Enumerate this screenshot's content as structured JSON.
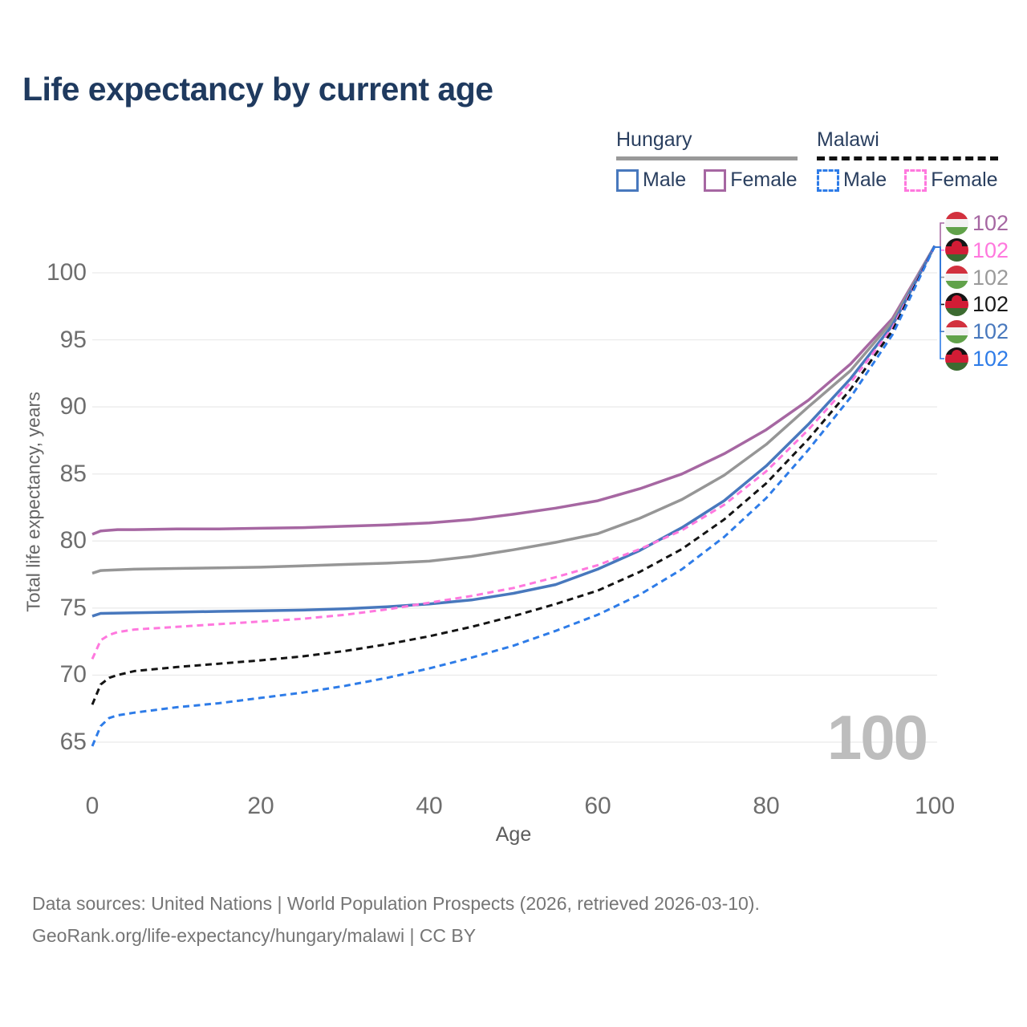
{
  "title": "Life expectancy by current age",
  "legend": {
    "groups": [
      {
        "country": "Hungary",
        "line_style": "solid",
        "items": [
          {
            "label": "Male",
            "color": "#4878bd",
            "dash": "solid"
          },
          {
            "label": "Female",
            "color": "#a667a2",
            "dash": "solid"
          }
        ]
      },
      {
        "country": "Malawi",
        "line_style": "dashed",
        "items": [
          {
            "label": "Male",
            "color": "#2e7ce8",
            "dash": "dashed"
          },
          {
            "label": "Female",
            "color": "#ff78de",
            "dash": "dashed"
          }
        ]
      }
    ]
  },
  "watermark": "100",
  "footer": {
    "line1": "Data sources: United Nations | World Population Prospects (2026, retrieved 2026-03-10).",
    "line2": "GeoRank.org/life-expectancy/hungary/malawi | CC BY"
  },
  "chart_data": {
    "type": "line",
    "title": "Life expectancy by current age",
    "xlabel": "Age",
    "ylabel": "Total life expectancy, years",
    "xlim": [
      0,
      100
    ],
    "ylim": [
      65,
      102
    ],
    "xticks": [
      "0",
      "20",
      "40",
      "60",
      "80",
      "100"
    ],
    "yticks": [
      "65",
      "70",
      "75",
      "80",
      "85",
      "90",
      "95",
      "100"
    ],
    "grid": "horizontal",
    "grid_color": "#e9e9e9",
    "legend_position": "top-right",
    "series": [
      {
        "id": "hungary-female",
        "name": "Hungary Female",
        "color": "#a667a2",
        "dash": "solid",
        "points": [
          [
            0,
            80.5
          ],
          [
            1,
            80.75
          ],
          [
            3,
            80.85
          ],
          [
            5,
            80.85
          ],
          [
            10,
            80.9
          ],
          [
            15,
            80.9
          ],
          [
            20,
            80.95
          ],
          [
            25,
            81.0
          ],
          [
            30,
            81.1
          ],
          [
            35,
            81.2
          ],
          [
            40,
            81.35
          ],
          [
            45,
            81.6
          ],
          [
            50,
            82.0
          ],
          [
            55,
            82.45
          ],
          [
            60,
            83.0
          ],
          [
            65,
            83.9
          ],
          [
            70,
            85.0
          ],
          [
            75,
            86.5
          ],
          [
            80,
            88.3
          ],
          [
            85,
            90.5
          ],
          [
            90,
            93.2
          ],
          [
            95,
            96.6
          ],
          [
            100,
            102
          ]
        ]
      },
      {
        "id": "hungary-total",
        "name": "Hungary Both sexes",
        "color": "#969696",
        "dash": "solid",
        "points": [
          [
            0,
            77.6
          ],
          [
            1,
            77.8
          ],
          [
            5,
            77.9
          ],
          [
            10,
            77.95
          ],
          [
            15,
            78.0
          ],
          [
            20,
            78.05
          ],
          [
            25,
            78.15
          ],
          [
            30,
            78.25
          ],
          [
            35,
            78.35
          ],
          [
            40,
            78.5
          ],
          [
            45,
            78.85
          ],
          [
            50,
            79.35
          ],
          [
            55,
            79.9
          ],
          [
            60,
            80.55
          ],
          [
            65,
            81.7
          ],
          [
            70,
            83.1
          ],
          [
            75,
            84.9
          ],
          [
            80,
            87.2
          ],
          [
            85,
            90.0
          ],
          [
            90,
            92.7
          ],
          [
            95,
            96.4
          ],
          [
            100,
            102
          ]
        ]
      },
      {
        "id": "hungary-male",
        "name": "Hungary Male",
        "color": "#4878bd",
        "dash": "solid",
        "points": [
          [
            0,
            74.4
          ],
          [
            1,
            74.6
          ],
          [
            5,
            74.65
          ],
          [
            10,
            74.7
          ],
          [
            15,
            74.75
          ],
          [
            20,
            74.8
          ],
          [
            25,
            74.85
          ],
          [
            30,
            74.95
          ],
          [
            35,
            75.1
          ],
          [
            40,
            75.3
          ],
          [
            45,
            75.6
          ],
          [
            50,
            76.1
          ],
          [
            55,
            76.75
          ],
          [
            60,
            77.9
          ],
          [
            65,
            79.3
          ],
          [
            70,
            81.0
          ],
          [
            75,
            83.0
          ],
          [
            80,
            85.6
          ],
          [
            85,
            88.7
          ],
          [
            90,
            92.1
          ],
          [
            95,
            96.1
          ],
          [
            100,
            102
          ]
        ]
      },
      {
        "id": "malawi-female",
        "name": "Malawi Female",
        "color": "#ff78de",
        "dash": "dashed",
        "points": [
          [
            0,
            71.2
          ],
          [
            1,
            72.6
          ],
          [
            2,
            73.0
          ],
          [
            3,
            73.2
          ],
          [
            5,
            73.4
          ],
          [
            10,
            73.6
          ],
          [
            15,
            73.8
          ],
          [
            20,
            74.0
          ],
          [
            25,
            74.2
          ],
          [
            30,
            74.5
          ],
          [
            35,
            74.9
          ],
          [
            40,
            75.4
          ],
          [
            45,
            75.9
          ],
          [
            50,
            76.5
          ],
          [
            55,
            77.3
          ],
          [
            60,
            78.2
          ],
          [
            65,
            79.4
          ],
          [
            70,
            80.8
          ],
          [
            75,
            82.7
          ],
          [
            80,
            85.2
          ],
          [
            85,
            88.3
          ],
          [
            90,
            91.8
          ],
          [
            95,
            95.9
          ],
          [
            100,
            102
          ]
        ]
      },
      {
        "id": "malawi-total",
        "name": "Malawi Both sexes",
        "color": "#141414",
        "dash": "dashed",
        "points": [
          [
            0,
            67.8
          ],
          [
            1,
            69.3
          ],
          [
            2,
            69.8
          ],
          [
            3,
            70.0
          ],
          [
            5,
            70.3
          ],
          [
            10,
            70.6
          ],
          [
            15,
            70.85
          ],
          [
            20,
            71.1
          ],
          [
            25,
            71.4
          ],
          [
            30,
            71.8
          ],
          [
            35,
            72.3
          ],
          [
            40,
            72.9
          ],
          [
            45,
            73.6
          ],
          [
            50,
            74.4
          ],
          [
            55,
            75.3
          ],
          [
            60,
            76.3
          ],
          [
            65,
            77.7
          ],
          [
            70,
            79.4
          ],
          [
            75,
            81.6
          ],
          [
            80,
            84.3
          ],
          [
            85,
            87.6
          ],
          [
            90,
            91.3
          ],
          [
            95,
            95.7
          ],
          [
            100,
            102
          ]
        ]
      },
      {
        "id": "malawi-male",
        "name": "Malawi Male",
        "color": "#2e7ce8",
        "dash": "dashed",
        "points": [
          [
            0,
            64.7
          ],
          [
            1,
            66.2
          ],
          [
            2,
            66.8
          ],
          [
            3,
            67.0
          ],
          [
            5,
            67.2
          ],
          [
            10,
            67.6
          ],
          [
            15,
            67.9
          ],
          [
            20,
            68.3
          ],
          [
            25,
            68.7
          ],
          [
            30,
            69.2
          ],
          [
            35,
            69.8
          ],
          [
            40,
            70.5
          ],
          [
            45,
            71.3
          ],
          [
            50,
            72.2
          ],
          [
            55,
            73.3
          ],
          [
            60,
            74.5
          ],
          [
            65,
            76.0
          ],
          [
            70,
            77.9
          ],
          [
            75,
            80.3
          ],
          [
            80,
            83.2
          ],
          [
            85,
            86.8
          ],
          [
            90,
            90.7
          ],
          [
            95,
            95.4
          ],
          [
            100,
            102
          ]
        ]
      }
    ],
    "end_labels": [
      {
        "series": "hungary-female",
        "flag": "hu",
        "value": "102",
        "color": "#a667a2"
      },
      {
        "series": "malawi-female",
        "flag": "mw",
        "value": "102",
        "color": "#ff78de"
      },
      {
        "series": "hungary-total",
        "flag": "hu",
        "value": "102",
        "color": "#9a9a9a"
      },
      {
        "series": "malawi-total",
        "flag": "mw",
        "value": "102",
        "color": "#1a1a1a"
      },
      {
        "series": "hungary-male",
        "flag": "hu",
        "value": "102",
        "color": "#4878bd"
      },
      {
        "series": "malawi-male",
        "flag": "mw",
        "value": "102",
        "color": "#2e7ce8"
      }
    ],
    "flag_colors": {
      "hu": {
        "top": "#d2313e",
        "mid": "#f2f2f2",
        "bottom": "#61a24a"
      },
      "mw": {
        "top": "#151515",
        "mid": "#d21c35",
        "bottom": "#3c6b31"
      }
    }
  }
}
